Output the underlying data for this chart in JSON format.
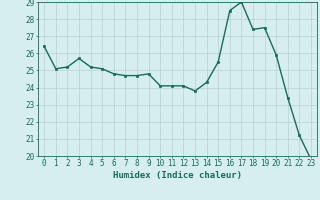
{
  "x": [
    0,
    1,
    2,
    3,
    4,
    5,
    6,
    7,
    8,
    9,
    10,
    11,
    12,
    13,
    14,
    15,
    16,
    17,
    18,
    19,
    20,
    21,
    22,
    23
  ],
  "y": [
    26.4,
    25.1,
    25.2,
    25.7,
    25.2,
    25.1,
    24.8,
    24.7,
    24.7,
    24.8,
    24.1,
    24.1,
    24.1,
    23.8,
    24.3,
    25.5,
    28.5,
    29.0,
    27.4,
    27.5,
    25.9,
    23.4,
    21.2,
    19.8
  ],
  "line_color": "#1a6b5a",
  "marker": "s",
  "markersize": 1.8,
  "linewidth": 1.0,
  "bg_color": "#d6eeee",
  "grid_color": "#b8d0d0",
  "xlabel": "Humidex (Indice chaleur)",
  "ylim": [
    20,
    29
  ],
  "xlim": [
    -0.5,
    23.5
  ],
  "yticks": [
    20,
    21,
    22,
    23,
    24,
    25,
    26,
    27,
    28,
    29
  ],
  "xticks": [
    0,
    1,
    2,
    3,
    4,
    5,
    6,
    7,
    8,
    9,
    10,
    11,
    12,
    13,
    14,
    15,
    16,
    17,
    18,
    19,
    20,
    21,
    22,
    23
  ],
  "xlabel_fontsize": 6.5,
  "tick_fontsize": 5.5,
  "tick_color": "#1a6b5a",
  "axis_color": "#1a6b5a"
}
